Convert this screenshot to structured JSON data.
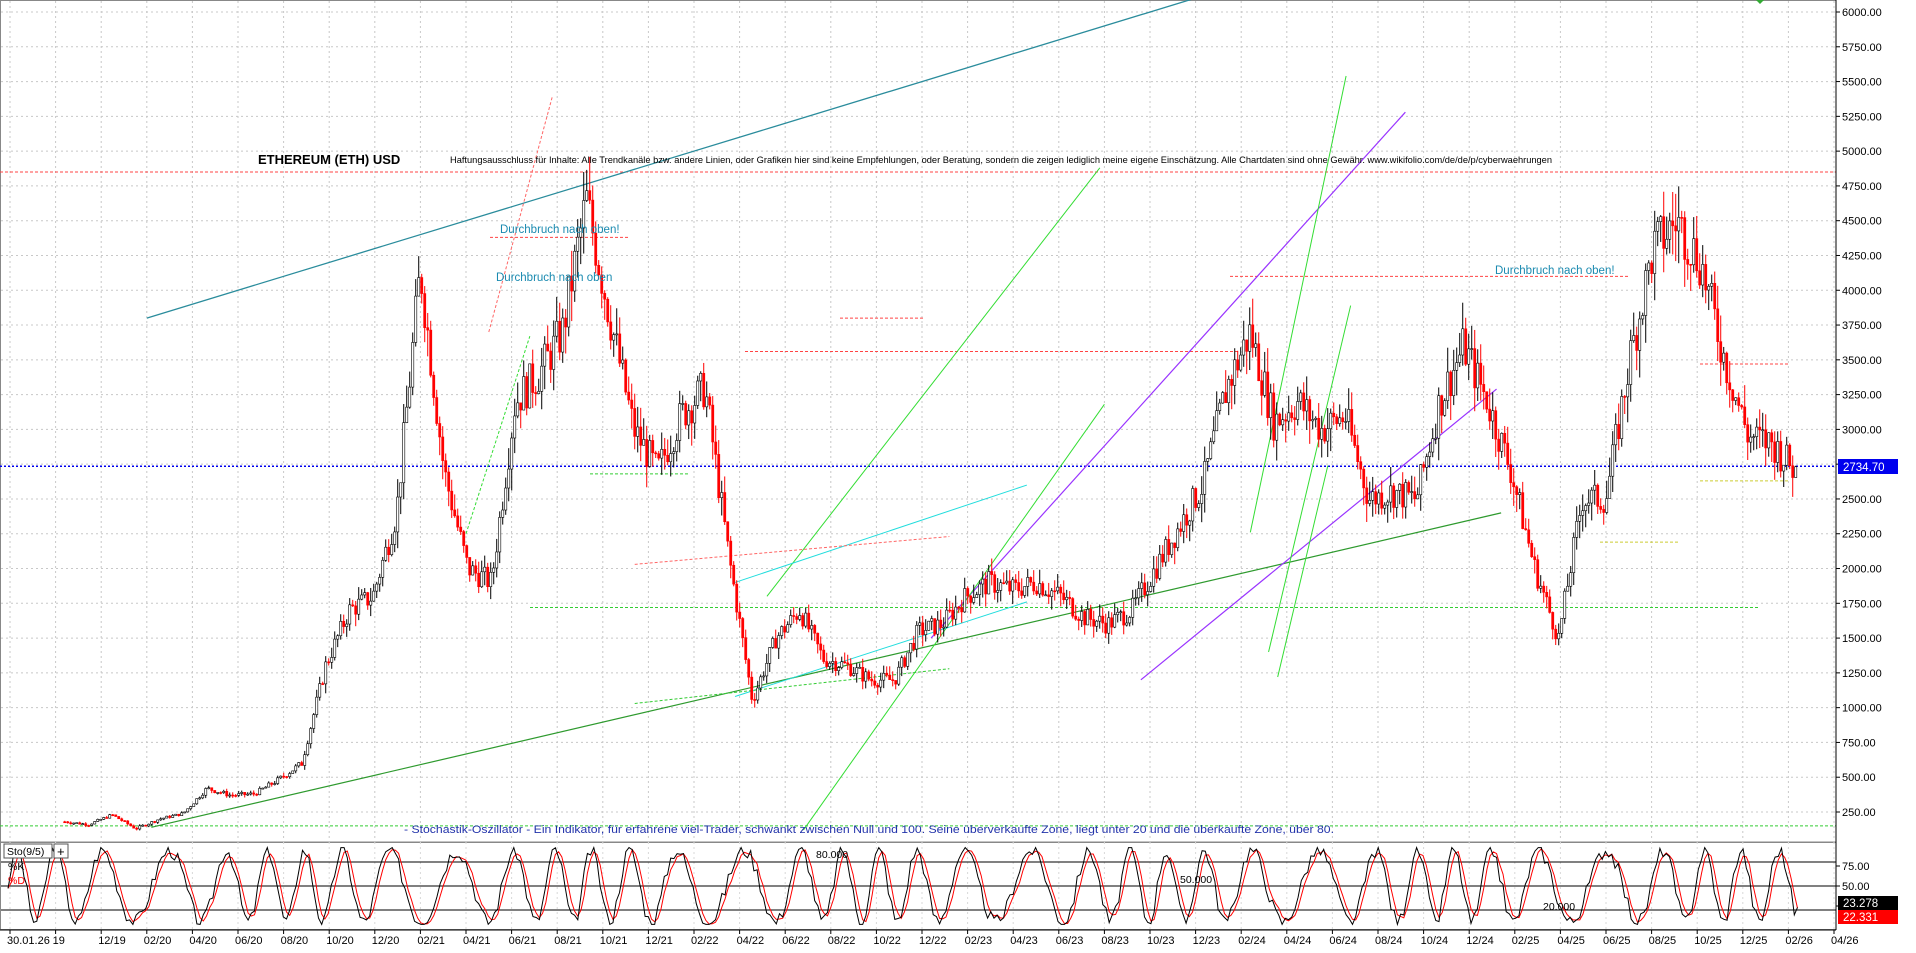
{
  "chart_data": {
    "type": "line",
    "title": "ETHEREUM (ETH) USD",
    "disclaimer": "Haftungsausschluss für Inhalte: Alle Trendkanäle bzw. andere Linien, oder Grafiken hier sind keine Empfehlungen, oder Beratung, sondern die zeigen lediglich meine eigene Einschätzung. Alle Chartdaten sind ohne Gewähr.  www.wikifolio.com/de/de/p/cyberwaehrungen",
    "oscillator_note": "- Stochastik-Oszillator - Ein Indikator, für erfahrene viel-Trader, schwankt zwischen Null und 100. Seine überverkaufte Zone, liegt unter 20 und die überkaufte Zone, über 80.",
    "ylim": [
      0,
      6100
    ],
    "price_ticks": [
      "6000.00",
      "5750.00",
      "5500.00",
      "5250.00",
      "5000.00",
      "4750.00",
      "4500.00",
      "4250.00",
      "4000.00",
      "3750.00",
      "3500.00",
      "3250.00",
      "3000.00",
      "2750.00",
      "2500.00",
      "2250.00",
      "2000.00",
      "1750.00",
      "1500.00",
      "1250.00",
      "1000.00",
      "750.00",
      "500.00",
      "250.00"
    ],
    "x_tick_labels": [
      "30.01.26",
      "19",
      "12/19",
      "02/20",
      "04/20",
      "06/20",
      "08/20",
      "10/20",
      "12/20",
      "02/21",
      "04/21",
      "06/21",
      "08/21",
      "10/21",
      "12/21",
      "02/22",
      "04/22",
      "06/22",
      "08/22",
      "10/22",
      "12/22",
      "02/23",
      "04/23",
      "06/23",
      "08/23",
      "10/23",
      "12/23",
      "02/24",
      "04/24",
      "06/24",
      "08/24",
      "10/24",
      "12/24",
      "02/25",
      "04/25",
      "06/25",
      "08/25",
      "10/25",
      "12/25",
      "02/26",
      "04/26"
    ],
    "current_price": "2734.70",
    "annotations": [
      {
        "text": "Durchbruch nach oben!",
        "x": "05/21",
        "y": 4300
      },
      {
        "text": "Durchbruch nach oben",
        "x": "05/21",
        "y": 4000
      },
      {
        "text": "Durchbruch nach oben!",
        "x": "12/24",
        "y": 4120
      }
    ],
    "series": [
      {
        "kind": "price",
        "x": [
          "10/19",
          "12/19",
          "02/20",
          "03/20",
          "05/20",
          "07/20",
          "08/20",
          "09/20",
          "10/20",
          "11/20",
          "12/20",
          "01/21",
          "02/21",
          "03/21",
          "04/21",
          "05/21",
          "05/21b",
          "06/21",
          "07/21",
          "08/21",
          "09/21",
          "10/21",
          "11/21",
          "12/21",
          "01/22",
          "02/22",
          "03/22",
          "04/22",
          "05/22",
          "06/22",
          "07/22",
          "08/22",
          "09/22",
          "10/22",
          "11/22",
          "12/22",
          "01/23",
          "02/23",
          "03/23",
          "04/23",
          "05/23",
          "06/23",
          "07/23",
          "08/23",
          "09/23",
          "10/23",
          "11/23",
          "12/23",
          "01/24",
          "02/24",
          "03/24",
          "04/24",
          "05/24",
          "06/24",
          "07/24",
          "08/24",
          "09/24",
          "10/24",
          "11/24",
          "12/24",
          "01/25",
          "02/25",
          "03/25",
          "04/25",
          "05/25",
          "06/25",
          "07/25",
          "08/25",
          "09/25",
          "10/25",
          "11/25",
          "12/25",
          "01/26",
          "02/26"
        ],
        "values": [
          180,
          160,
          230,
          130,
          200,
          240,
          420,
          370,
          380,
          480,
          600,
          1300,
          1700,
          1800,
          2400,
          4150,
          2700,
          2000,
          1900,
          3200,
          3400,
          3700,
          4650,
          3800,
          3000,
          2700,
          3100,
          3300,
          2100,
          1050,
          1500,
          1700,
          1350,
          1300,
          1200,
          1200,
          1550,
          1600,
          1800,
          1900,
          1850,
          1900,
          1800,
          1650,
          1600,
          1700,
          2000,
          2300,
          2600,
          3300,
          3700,
          3050,
          3200,
          3000,
          3100,
          2500,
          2550,
          2500,
          3200,
          3600,
          3200,
          2700,
          2000,
          1500,
          2500,
          2500,
          3500,
          4300,
          4500,
          4200,
          3500,
          2950,
          2900,
          2700
        ]
      }
    ],
    "stochastic": {
      "label": "Sto(9/5)",
      "k_label": "%K",
      "d_label": "%D",
      "ticks": [
        "75.00",
        "50.00",
        "25.00"
      ],
      "levels": [
        "80.000",
        "50.000",
        "20.000"
      ],
      "k_value": "23.278",
      "d_value": "22.331"
    },
    "colors": {
      "up": "#000000",
      "down": "#ff0000",
      "price_line": "#0000ff",
      "channel_teal": "#2a8c9c",
      "channel_purple": "#9933ff",
      "channel_green": "#2e9a2e",
      "light_green": "#33dd33",
      "cyan": "#22dddd"
    }
  }
}
